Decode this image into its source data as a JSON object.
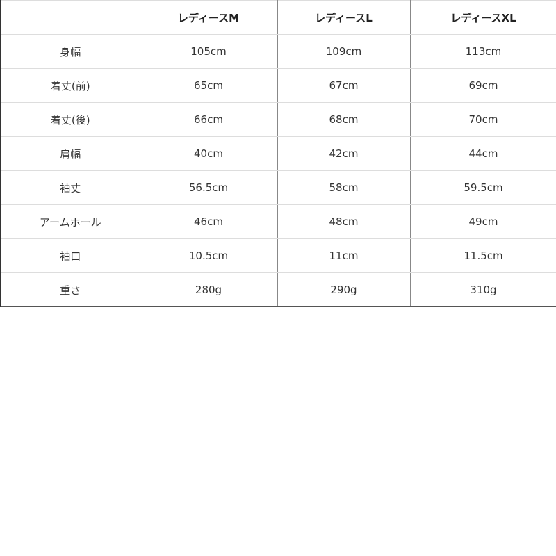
{
  "table": {
    "headers": [
      "",
      "レディースM",
      "レディースL",
      "レディースXL"
    ],
    "rows": [
      [
        "身幅",
        "105cm",
        "109cm",
        "113cm"
      ],
      [
        "着丈(前)",
        "65cm",
        "67cm",
        "69cm"
      ],
      [
        "着丈(後)",
        "66cm",
        "68cm",
        "70cm"
      ],
      [
        "肩幅",
        "40cm",
        "42cm",
        "44cm"
      ],
      [
        "袖丈",
        "56.5cm",
        "58cm",
        "59.5cm"
      ],
      [
        "アームホール",
        "46cm",
        "48cm",
        "49cm"
      ],
      [
        "袖口",
        "10.5cm",
        "11cm",
        "11.5cm"
      ],
      [
        "重さ",
        "280g",
        "290g",
        "310g"
      ]
    ]
  }
}
